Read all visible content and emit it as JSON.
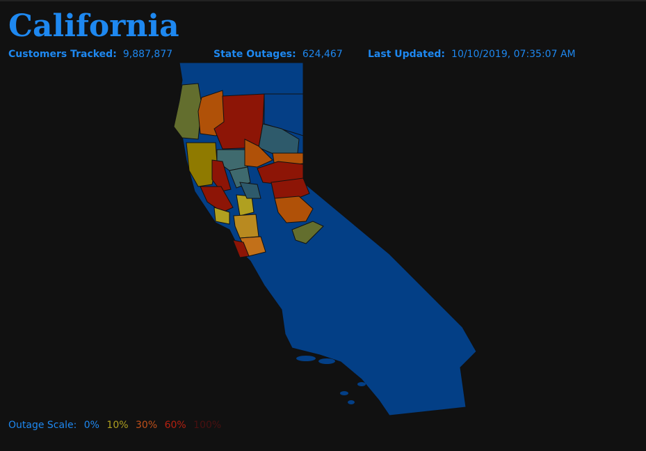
{
  "header": {
    "title": "California"
  },
  "stats": [
    {
      "label": "Customers Tracked:",
      "value": "9,887,877"
    },
    {
      "label": "State Outages:",
      "value": "624,467"
    },
    {
      "label": "Last Updated:",
      "value": "10/10/2019, 07:35:07 AM"
    }
  ],
  "legend": {
    "label": "Outage Scale:",
    "steps": [
      "0%",
      "10%",
      "30%",
      "60%",
      "100%"
    ]
  }
}
